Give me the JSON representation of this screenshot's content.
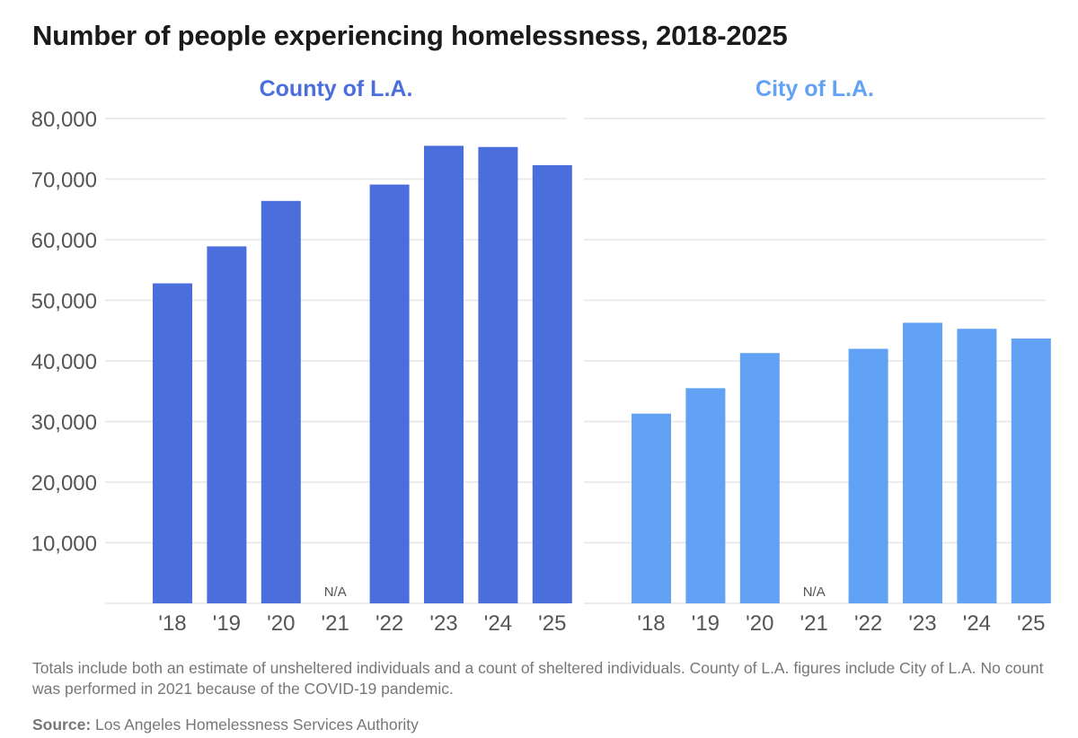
{
  "title": "Number of people experiencing homelessness, 2018-2025",
  "note": "Totals include both an estimate of unsheltered individuals and a count of sheltered individuals. County of L.A. figures include City of L.A. No count was performed in 2021 because of the COVID-19 pandemic.",
  "source": {
    "label": "Source:",
    "text": " Los Angeles Homelessness Services Authority"
  },
  "colors": {
    "county": "#4a6fdc",
    "city": "#62a2f5",
    "grid": "#e6e6e6",
    "tick": "#555555",
    "na": "#555555"
  },
  "chart_data": [
    {
      "type": "bar",
      "title": "County of L.A.",
      "categories": [
        "'18",
        "'19",
        "'20",
        "'21",
        "'22",
        "'23",
        "'24",
        "'25"
      ],
      "values": [
        52800,
        58900,
        66400,
        null,
        69100,
        75500,
        75300,
        72300
      ],
      "missing_label": "N/A",
      "ylim": [
        0,
        80000
      ],
      "yticks": [
        "10,000",
        "20,000",
        "30,000",
        "40,000",
        "50,000",
        "60,000",
        "70,000",
        "80,000"
      ],
      "ytick_values": [
        10000,
        20000,
        30000,
        40000,
        50000,
        60000,
        70000,
        80000
      ],
      "grid": true
    },
    {
      "type": "bar",
      "title": "City of L.A.",
      "categories": [
        "'18",
        "'19",
        "'20",
        "'21",
        "'22",
        "'23",
        "'24",
        "'25"
      ],
      "values": [
        31300,
        35500,
        41300,
        null,
        42000,
        46300,
        45300,
        43700
      ],
      "missing_label": "N/A",
      "ylim": [
        0,
        80000
      ],
      "grid": true
    }
  ]
}
